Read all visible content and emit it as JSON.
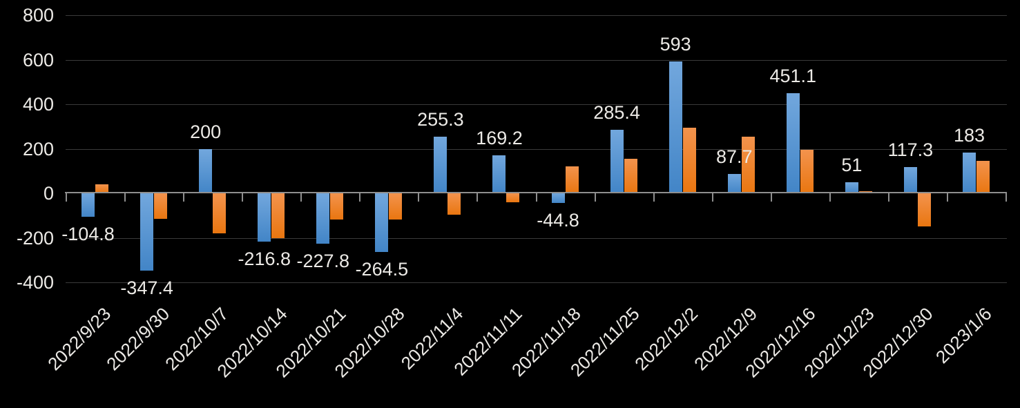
{
  "chart_data": {
    "type": "bar",
    "title": "",
    "xlabel": "",
    "ylabel": "",
    "categories": [
      "2022/9/23",
      "2022/9/30",
      "2022/10/7",
      "2022/10/14",
      "2022/10/21",
      "2022/10/28",
      "2022/11/4",
      "2022/11/11",
      "2022/11/18",
      "2022/11/25",
      "2022/12/2",
      "2022/12/9",
      "2022/12/16",
      "2022/12/23",
      "2022/12/30",
      "2023/1/6"
    ],
    "series": [
      {
        "name": "series-blue",
        "color_top": "#72A7DD",
        "color_bottom": "#4285C7",
        "values": [
          -104.8,
          -347.4,
          200,
          -216.8,
          -227.8,
          -264.5,
          255.3,
          169.2,
          -44.8,
          285.4,
          593,
          87.7,
          451.1,
          51,
          117.3,
          183
        ],
        "labels": [
          "-104.8",
          "-347.4",
          "200",
          "-216.8",
          "-227.8",
          "-264.5",
          "255.3",
          "169.2",
          "-44.8",
          "285.4",
          "593",
          "87.7",
          "451.1",
          "51",
          "117.3",
          "183"
        ]
      },
      {
        "name": "series-orange",
        "color_top": "#F3934D",
        "color_bottom": "#E97610",
        "values": [
          40,
          -115,
          -180,
          -200,
          -118,
          -118,
          -95,
          -40,
          120,
          155,
          295,
          255,
          195,
          10,
          -150,
          145
        ],
        "labels": []
      }
    ],
    "y_axis": {
      "ticks": [
        800,
        600,
        400,
        200,
        0,
        -200,
        -400
      ],
      "ylim": [
        -400,
        800
      ],
      "tick_labels": [
        "800",
        "600",
        "400",
        "200",
        "0",
        "-200",
        "-400"
      ]
    },
    "grid": true,
    "legend": false,
    "colors": {
      "background": "#000000",
      "gridline": "#3A3A3A",
      "axis": "#8F8F8F",
      "text": "#ECEAE6"
    }
  }
}
